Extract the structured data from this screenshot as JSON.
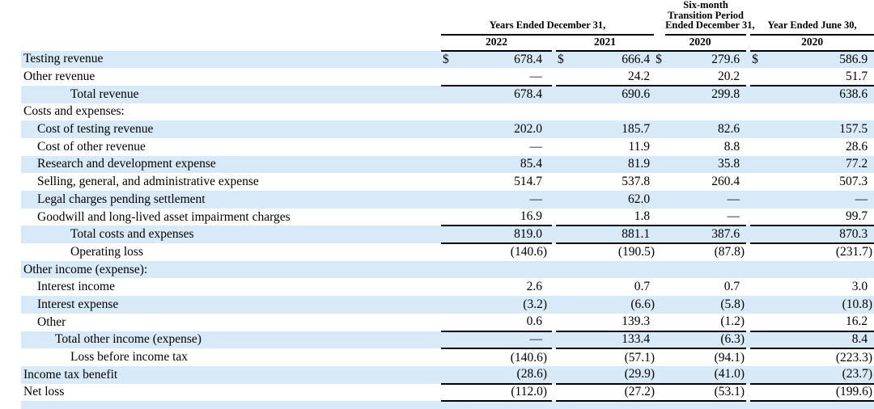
{
  "colors": {
    "row_shade": "#d8eaf8",
    "rule": "#000000",
    "background": "#ffffff"
  },
  "currency_symbol": "$",
  "table": {
    "header": {
      "groups": [
        {
          "lines": [
            "Years Ended December 31,"
          ]
        },
        {
          "lines": [
            "Six-month",
            "Transition Period",
            "Ended December 31,"
          ]
        },
        {
          "lines": [
            "Year Ended June 30,"
          ]
        }
      ],
      "years": [
        "2022",
        "2021",
        "2020",
        "2020"
      ]
    },
    "rows": [
      {
        "label": "Testing revenue",
        "indent": 0,
        "shaded": true,
        "dollar": true,
        "rule": false,
        "values": [
          "678.4",
          "666.4",
          "279.6",
          "586.9"
        ]
      },
      {
        "label": "Other revenue",
        "indent": 0,
        "shaded": false,
        "dollar": false,
        "rule": true,
        "values": [
          "—",
          "24.2",
          "20.2",
          "51.7"
        ]
      },
      {
        "label": "Total revenue",
        "indent": 3,
        "shaded": true,
        "dollar": false,
        "rule": false,
        "values": [
          "678.4",
          "690.6",
          "299.8",
          "638.6"
        ]
      },
      {
        "label": "Costs and expenses:",
        "indent": 0,
        "shaded": false,
        "dollar": false,
        "rule": false,
        "values": [
          "",
          "",
          "",
          ""
        ]
      },
      {
        "label": "Cost of testing revenue",
        "indent": 1,
        "shaded": true,
        "dollar": false,
        "rule": false,
        "values": [
          "202.0",
          "185.7",
          "82.6",
          "157.5"
        ]
      },
      {
        "label": "Cost of other revenue",
        "indent": 1,
        "shaded": false,
        "dollar": false,
        "rule": false,
        "values": [
          "—",
          "11.9",
          "8.8",
          "28.6"
        ]
      },
      {
        "label": "Research and development expense",
        "indent": 1,
        "shaded": true,
        "dollar": false,
        "rule": false,
        "values": [
          "85.4",
          "81.9",
          "35.8",
          "77.2"
        ]
      },
      {
        "label": "Selling, general, and administrative expense",
        "indent": 1,
        "shaded": false,
        "dollar": false,
        "rule": false,
        "values": [
          "514.7",
          "537.8",
          "260.4",
          "507.3"
        ]
      },
      {
        "label": "Legal charges pending settlement",
        "indent": 1,
        "shaded": true,
        "dollar": false,
        "rule": false,
        "values": [
          "—",
          "62.0",
          "—",
          "—"
        ]
      },
      {
        "label": "Goodwill and long-lived asset impairment charges",
        "indent": 1,
        "shaded": false,
        "dollar": false,
        "rule": true,
        "values": [
          "16.9",
          "1.8",
          "—",
          "99.7"
        ]
      },
      {
        "label": "Total costs and expenses",
        "indent": 3,
        "shaded": true,
        "dollar": false,
        "rule": true,
        "values": [
          "819.0",
          "881.1",
          "387.6",
          "870.3"
        ]
      },
      {
        "label": "Operating loss",
        "indent": 3,
        "shaded": false,
        "dollar": false,
        "rule": false,
        "values": [
          "(140.6)",
          "(190.5)",
          "(87.8)",
          "(231.7)"
        ]
      },
      {
        "label": "Other income (expense):",
        "indent": 0,
        "shaded": true,
        "dollar": false,
        "rule": false,
        "values": [
          "",
          "",
          "",
          ""
        ]
      },
      {
        "label": "Interest income",
        "indent": 1,
        "shaded": false,
        "dollar": false,
        "rule": false,
        "values": [
          "2.6",
          "0.7",
          "0.7",
          "3.0"
        ]
      },
      {
        "label": "Interest expense",
        "indent": 1,
        "shaded": true,
        "dollar": false,
        "rule": false,
        "values": [
          "(3.2)",
          "(6.6)",
          "(5.8)",
          "(10.8)"
        ]
      },
      {
        "label": "Other",
        "indent": 1,
        "shaded": false,
        "dollar": false,
        "rule": true,
        "values": [
          "0.6",
          "139.3",
          "(1.2)",
          "16.2"
        ]
      },
      {
        "label": "Total other income (expense)",
        "indent": 2,
        "shaded": true,
        "dollar": false,
        "rule": true,
        "values": [
          "—",
          "133.4",
          "(6.3)",
          "8.4"
        ]
      },
      {
        "label": "Loss before income tax",
        "indent": 3,
        "shaded": false,
        "dollar": false,
        "rule": false,
        "values": [
          "(140.6)",
          "(57.1)",
          "(94.1)",
          "(223.3)"
        ]
      },
      {
        "label": "Income tax benefit",
        "indent": 0,
        "shaded": true,
        "dollar": false,
        "rule": true,
        "values": [
          "(28.6)",
          "(29.9)",
          "(41.0)",
          "(23.7)"
        ]
      },
      {
        "label": "Net loss",
        "indent": 0,
        "shaded": false,
        "dollar": false,
        "rule": true,
        "values": [
          "(112.0)",
          "(27.2)",
          "(53.1)",
          "(199.6)"
        ]
      }
    ]
  }
}
